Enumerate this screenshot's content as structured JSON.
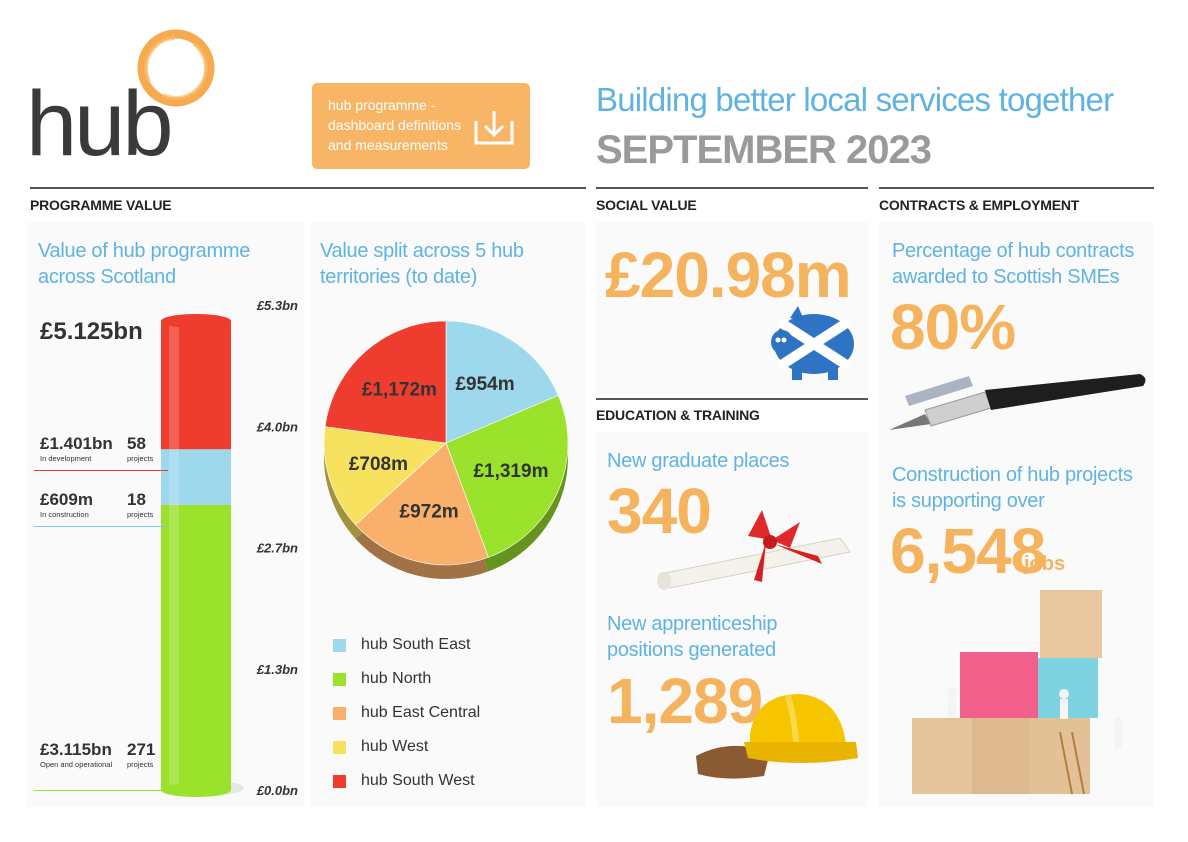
{
  "logo": {
    "text": "hub"
  },
  "download": {
    "lines": [
      "hub programme -",
      "dashboard definitions",
      "and measurements"
    ],
    "icon": "download-icon"
  },
  "header": {
    "title": "Building better local services together",
    "date": "SEPTEMBER 2023"
  },
  "sections": {
    "programme_value": "PROGRAMME VALUE",
    "social_value": "SOCIAL VALUE",
    "contracts_employment": "CONTRACTS & EMPLOYMENT",
    "education_training": "EDUCATION & TRAINING"
  },
  "programme": {
    "title_line1": "Value of hub programme",
    "title_line2": "across Scotland",
    "total": "£5.125bn",
    "stats": [
      {
        "value": "£1.401bn",
        "sub": "In development",
        "count": "58",
        "count_sub": "projects"
      },
      {
        "value": "£609m",
        "sub": "In construction",
        "count": "18",
        "count_sub": "projects"
      },
      {
        "value": "£3.115bn",
        "sub": "Open and operational",
        "count": "271",
        "count_sub": "projects"
      }
    ]
  },
  "territories": {
    "title_line1": "Value split across 5 hub",
    "title_line2": "territories (to date)",
    "legend": [
      "hub South East",
      "hub North",
      "hub East Central",
      "hub West",
      "hub South West"
    ]
  },
  "chart_data": [
    {
      "type": "bar",
      "stacked": true,
      "categories": [
        "Value of hub programme across Scotland"
      ],
      "series": [
        {
          "name": "Open and operational",
          "values": [
            3.115
          ],
          "color": "#9be22d"
        },
        {
          "name": "In construction",
          "values": [
            0.609
          ],
          "color": "#9dd8ec"
        },
        {
          "name": "In development",
          "values": [
            1.401
          ],
          "color": "#ee3d2e"
        }
      ],
      "yticks": [
        "£0.0bn",
        "£1.3bn",
        "£2.7bn",
        "£4.0bn",
        "£5.3bn"
      ],
      "ylim": [
        0,
        5.3
      ],
      "unit": "£bn"
    },
    {
      "type": "pie",
      "labels": [
        "hub South East",
        "hub North",
        "hub East Central",
        "hub West",
        "hub South West"
      ],
      "values": [
        954,
        1319,
        972,
        708,
        1172
      ],
      "value_labels": [
        "£954m",
        "£1,319m",
        "£972m",
        "£708m",
        "£1,172m"
      ],
      "colors": [
        "#9dd8ec",
        "#9be22d",
        "#f8b06b",
        "#f7e260",
        "#ee3d2e"
      ],
      "unit": "£m"
    }
  ],
  "social": {
    "value": "£20.98m",
    "image": "piggy-bank"
  },
  "education": {
    "graduate_label": "New graduate places",
    "graduate_value": "340",
    "apprentice_line1": "New apprenticeship",
    "apprentice_line2": "positions generated",
    "apprentice_value": "1,289"
  },
  "contracts": {
    "sme_line1": "Percentage of hub contracts",
    "sme_line2": "awarded to Scottish SMEs",
    "sme_value": "80%",
    "jobs_line1": "Construction of hub projects",
    "jobs_line2": "is supporting over",
    "jobs_value": "6,548",
    "jobs_unit": "jobs"
  },
  "colors": {
    "blue": "#5fb3e3",
    "orange": "#f5b35e",
    "grey": "#9a9a9a"
  }
}
